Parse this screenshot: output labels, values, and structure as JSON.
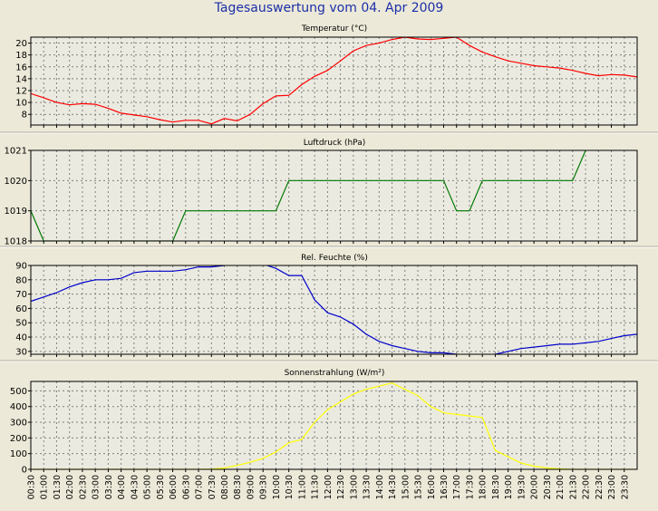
{
  "title": "Tagesauswertung vom 04. Apr 2009",
  "time_labels": [
    "00:30",
    "01:00",
    "01:30",
    "02:00",
    "02:30",
    "03:00",
    "03:30",
    "04:00",
    "04:30",
    "05:00",
    "05:30",
    "06:00",
    "06:30",
    "07:00",
    "07:30",
    "08:00",
    "08:30",
    "09:00",
    "09:30",
    "10:00",
    "10:30",
    "11:00",
    "11:30",
    "12:00",
    "12:30",
    "13:00",
    "13:30",
    "14:00",
    "14:30",
    "15:00",
    "15:30",
    "16:00",
    "16:30",
    "17:00",
    "17:30",
    "18:00",
    "18:30",
    "19:00",
    "19:30",
    "20:00",
    "20:30",
    "21:00",
    "21:30",
    "22:00",
    "22:30",
    "23:00",
    "23:30"
  ],
  "colors": {
    "plot_bg": "#eaeae0",
    "grid": "#808080",
    "axis_text": "#000000"
  },
  "chart_data": [
    {
      "type": "line",
      "title": "Temperatur (°C)",
      "yticks": [
        8,
        10,
        12,
        14,
        16,
        18,
        20
      ],
      "ylim": [
        6.2,
        21
      ],
      "color": "#ff0000",
      "x": [
        0,
        0.5,
        1,
        1.5,
        2,
        2.5,
        3,
        3.5,
        4,
        4.5,
        5,
        5.5,
        6,
        6.5,
        7,
        7.5,
        8,
        8.5,
        9,
        9.5,
        10,
        10.5,
        11,
        11.5,
        12,
        12.5,
        13,
        13.5,
        14,
        14.5,
        15,
        15.5,
        16,
        16.5,
        17,
        17.5,
        18,
        18.5,
        19,
        19.5,
        20,
        20.5,
        21,
        21.5,
        22,
        22.5,
        23,
        23.5
      ],
      "values": [
        11.5,
        10.8,
        10.0,
        9.6,
        9.8,
        9.7,
        9.0,
        8.2,
        7.9,
        7.6,
        7.1,
        6.7,
        7.0,
        7.0,
        6.4,
        7.3,
        6.9,
        8.0,
        9.8,
        11.1,
        11.2,
        13.0,
        14.4,
        15.4,
        17.0,
        18.7,
        19.6,
        20.0,
        20.6,
        21.0,
        20.7,
        20.6,
        20.8,
        21.0,
        19.6,
        18.5,
        17.7,
        17.0,
        16.6,
        16.2,
        16.0,
        15.8,
        15.4,
        14.9,
        14.5,
        14.7,
        14.6,
        14.3
      ],
      "grid": true
    },
    {
      "type": "line",
      "title": "Luftdruck (hPa)",
      "yticks": [
        1018,
        1019,
        1020,
        1021
      ],
      "ylim": [
        1018,
        1021
      ],
      "color": "#007800",
      "x": [
        0,
        0.5,
        5.5,
        6,
        9.5,
        10,
        16,
        16.5,
        17,
        17.5,
        21,
        21.5
      ],
      "values": [
        1019,
        1018,
        1018,
        1019,
        1019,
        1020,
        1020,
        1019,
        1019,
        1020,
        1020,
        1021
      ],
      "grid": true
    },
    {
      "type": "line",
      "title": "Rel. Feuchte (%)",
      "yticks": [
        30,
        40,
        50,
        60,
        70,
        80,
        90
      ],
      "ylim": [
        28,
        90
      ],
      "color": "#0000cc",
      "x": [
        0,
        0.5,
        1,
        1.5,
        2,
        2.5,
        3,
        3.5,
        4,
        4.5,
        5,
        5.5,
        6,
        6.5,
        7,
        7.5,
        8,
        8.5,
        9,
        9.5,
        10,
        10.5,
        11,
        11.5,
        12,
        12.5,
        13,
        13.5,
        14,
        14.5,
        15,
        15.5,
        16,
        16.5,
        17,
        17.5,
        18,
        18.5,
        19,
        19.5,
        20,
        20.5,
        21,
        21.5,
        22,
        22.5,
        23,
        23.5
      ],
      "values": [
        65,
        68,
        71,
        75,
        78,
        80,
        80,
        81,
        85,
        86,
        86,
        86,
        87,
        89,
        89,
        90,
        91,
        92,
        91,
        88,
        83,
        83,
        66,
        57,
        54,
        49,
        42,
        37,
        34,
        32,
        30,
        29,
        29,
        28,
        27,
        27,
        28,
        30,
        32,
        33,
        34,
        35,
        35,
        36,
        37,
        39,
        41,
        42
      ],
      "grid": true
    },
    {
      "type": "line",
      "title": "Sonnenstrahlung (W/m²)",
      "yticks": [
        0,
        100,
        200,
        300,
        400,
        500
      ],
      "ylim": [
        0,
        560
      ],
      "color": "#ffff00",
      "x": [
        0,
        0.5,
        1,
        1.5,
        2,
        2.5,
        3,
        3.5,
        4,
        4.5,
        5,
        5.5,
        6,
        6.5,
        7,
        7.5,
        8,
        8.5,
        9,
        9.5,
        10,
        10.5,
        11,
        11.5,
        12,
        12.5,
        13,
        13.5,
        14,
        14.5,
        15,
        15.5,
        16,
        16.5,
        17,
        17.5,
        18,
        18.5,
        19,
        19.5,
        20,
        20.5,
        21,
        21.5,
        22,
        22.5,
        23,
        23.5
      ],
      "values": [
        0,
        0,
        0,
        0,
        0,
        0,
        0,
        0,
        0,
        0,
        0,
        0,
        0,
        0,
        2,
        8,
        25,
        45,
        70,
        110,
        170,
        190,
        300,
        380,
        430,
        480,
        510,
        530,
        550,
        510,
        470,
        400,
        360,
        350,
        340,
        330,
        120,
        80,
        40,
        20,
        8,
        3,
        0,
        0,
        0,
        0,
        0,
        0
      ],
      "grid": true
    }
  ]
}
